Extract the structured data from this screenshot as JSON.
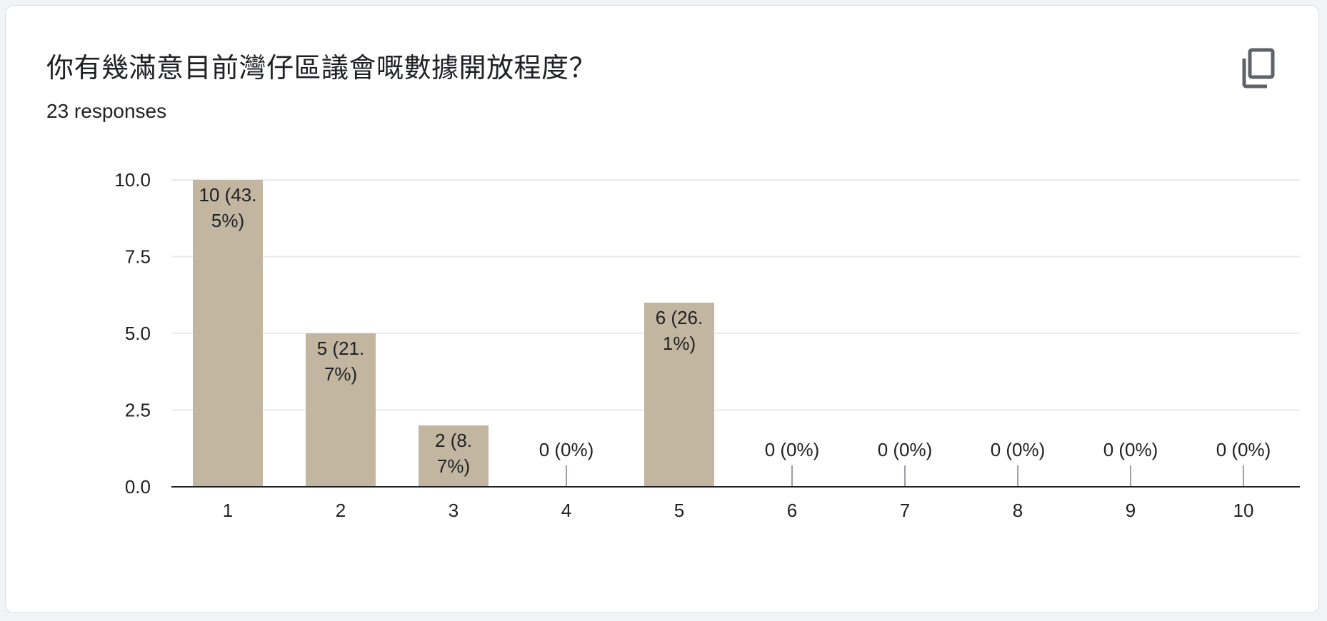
{
  "card": {
    "title": "你有幾滿意目前灣仔區議會嘅數據開放程度？",
    "responses": "23 responses",
    "copy_icon": "copy-icon"
  },
  "chart_data": {
    "type": "bar",
    "categories": [
      "1",
      "2",
      "3",
      "4",
      "5",
      "6",
      "7",
      "8",
      "9",
      "10"
    ],
    "values": [
      10,
      5,
      2,
      0,
      6,
      0,
      0,
      0,
      0,
      0
    ],
    "data_labels": [
      [
        "10 (43.",
        "5%)"
      ],
      [
        "5 (21.",
        "7%)"
      ],
      [
        "2 (8.",
        "7%)"
      ],
      [
        "0 (0%)"
      ],
      [
        "6 (26.",
        "1%)"
      ],
      [
        "0 (0%)"
      ],
      [
        "0 (0%)"
      ],
      [
        "0 (0%)"
      ],
      [
        "0 (0%)"
      ],
      [
        "0 (0%)"
      ]
    ],
    "y_ticks": [
      "0.0",
      "2.5",
      "5.0",
      "7.5",
      "10.0"
    ],
    "ylim": [
      0,
      10
    ],
    "grid": true,
    "bar_color": "#c2b6a1",
    "title": "",
    "xlabel": "",
    "ylabel": ""
  }
}
